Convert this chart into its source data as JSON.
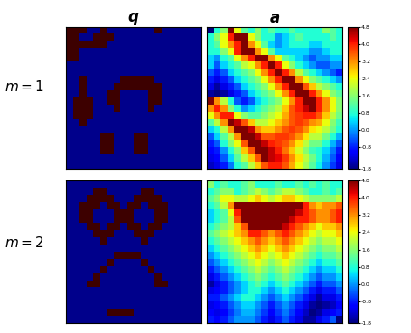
{
  "title_q": "$\\boldsymbol{q}$",
  "title_a": "$\\boldsymbol{a}$",
  "label_m1": "$m = 1$",
  "label_m2": "$m = 2$",
  "colorbar_ticks": [
    4.8,
    4.0,
    3.2,
    2.4,
    1.6,
    0.8,
    0.0,
    -0.8,
    -1.8
  ],
  "vmin": -1.8,
  "vmax": 4.8,
  "grid_size": 20,
  "q1_dark_color": "#3d0000",
  "q1_blue_color": "#00008B",
  "background": "#ffffff",
  "q1": [
    [
      1,
      1,
      1,
      0,
      0,
      1,
      0,
      0,
      0,
      0,
      0,
      0,
      0,
      1,
      0,
      0,
      0,
      0,
      0,
      0
    ],
    [
      1,
      1,
      0,
      0,
      1,
      1,
      1,
      0,
      0,
      0,
      0,
      0,
      0,
      0,
      0,
      0,
      0,
      0,
      0,
      0
    ],
    [
      1,
      1,
      1,
      1,
      1,
      1,
      0,
      0,
      0,
      0,
      0,
      0,
      0,
      0,
      0,
      0,
      0,
      0,
      0,
      0
    ],
    [
      1,
      1,
      0,
      0,
      0,
      0,
      0,
      0,
      0,
      0,
      0,
      0,
      0,
      0,
      0,
      0,
      0,
      0,
      0,
      0
    ],
    [
      1,
      1,
      0,
      0,
      0,
      0,
      0,
      0,
      0,
      0,
      0,
      0,
      0,
      0,
      0,
      0,
      0,
      0,
      0,
      0
    ],
    [
      0,
      0,
      0,
      0,
      0,
      0,
      0,
      0,
      0,
      0,
      0,
      0,
      0,
      0,
      0,
      0,
      0,
      0,
      0,
      0
    ],
    [
      0,
      0,
      0,
      0,
      0,
      0,
      0,
      0,
      0,
      0,
      0,
      0,
      0,
      0,
      0,
      0,
      0,
      0,
      0,
      0
    ],
    [
      0,
      0,
      1,
      0,
      0,
      0,
      0,
      0,
      1,
      1,
      1,
      1,
      1,
      0,
      0,
      0,
      0,
      0,
      0,
      0
    ],
    [
      0,
      0,
      1,
      0,
      0,
      0,
      0,
      1,
      1,
      1,
      1,
      1,
      1,
      1,
      0,
      0,
      0,
      0,
      0,
      0
    ],
    [
      0,
      0,
      1,
      0,
      0,
      0,
      1,
      1,
      0,
      0,
      0,
      0,
      1,
      1,
      0,
      0,
      0,
      0,
      0,
      0
    ],
    [
      0,
      1,
      1,
      1,
      0,
      0,
      1,
      1,
      0,
      0,
      0,
      0,
      1,
      1,
      0,
      0,
      0,
      0,
      0,
      0
    ],
    [
      0,
      1,
      1,
      1,
      0,
      0,
      0,
      1,
      0,
      0,
      0,
      0,
      1,
      0,
      0,
      0,
      0,
      0,
      0,
      0
    ],
    [
      0,
      1,
      1,
      1,
      0,
      0,
      0,
      0,
      0,
      0,
      0,
      0,
      0,
      0,
      0,
      0,
      0,
      0,
      0,
      0
    ],
    [
      0,
      0,
      1,
      0,
      0,
      0,
      0,
      0,
      0,
      0,
      0,
      0,
      0,
      0,
      0,
      0,
      0,
      0,
      0,
      0
    ],
    [
      0,
      0,
      0,
      0,
      0,
      0,
      0,
      0,
      0,
      0,
      0,
      0,
      0,
      0,
      0,
      0,
      0,
      0,
      0,
      0
    ],
    [
      0,
      0,
      0,
      0,
      0,
      1,
      1,
      0,
      0,
      0,
      1,
      1,
      0,
      0,
      0,
      0,
      0,
      0,
      0,
      0
    ],
    [
      0,
      0,
      0,
      0,
      0,
      1,
      1,
      0,
      0,
      0,
      1,
      1,
      0,
      0,
      0,
      0,
      0,
      0,
      0,
      0
    ],
    [
      0,
      0,
      0,
      0,
      0,
      1,
      1,
      0,
      0,
      0,
      1,
      1,
      0,
      0,
      0,
      0,
      0,
      0,
      0,
      0
    ],
    [
      0,
      0,
      0,
      0,
      0,
      0,
      0,
      0,
      0,
      0,
      0,
      0,
      0,
      0,
      0,
      0,
      0,
      0,
      0,
      0
    ],
    [
      0,
      0,
      0,
      0,
      0,
      0,
      0,
      0,
      0,
      0,
      0,
      0,
      0,
      0,
      0,
      0,
      0,
      0,
      0,
      0
    ]
  ],
  "q2": [
    [
      0,
      0,
      0,
      0,
      0,
      0,
      0,
      0,
      0,
      0,
      0,
      0,
      0,
      0,
      0,
      0,
      0,
      0,
      0,
      0
    ],
    [
      0,
      0,
      0,
      0,
      1,
      1,
      0,
      0,
      0,
      0,
      0,
      1,
      1,
      0,
      0,
      0,
      0,
      0,
      0,
      0
    ],
    [
      0,
      0,
      0,
      1,
      1,
      1,
      1,
      0,
      0,
      0,
      1,
      1,
      1,
      1,
      0,
      0,
      0,
      0,
      0,
      0
    ],
    [
      0,
      0,
      1,
      1,
      1,
      0,
      1,
      1,
      0,
      1,
      1,
      0,
      1,
      1,
      1,
      0,
      0,
      0,
      0,
      0
    ],
    [
      0,
      0,
      1,
      1,
      0,
      0,
      0,
      1,
      1,
      1,
      0,
      0,
      0,
      1,
      1,
      0,
      0,
      0,
      0,
      0
    ],
    [
      0,
      0,
      1,
      1,
      0,
      0,
      0,
      1,
      1,
      1,
      0,
      0,
      0,
      1,
      1,
      0,
      0,
      0,
      0,
      0
    ],
    [
      0,
      0,
      0,
      1,
      1,
      0,
      1,
      1,
      0,
      1,
      1,
      0,
      1,
      1,
      0,
      0,
      0,
      0,
      0,
      0
    ],
    [
      0,
      0,
      0,
      0,
      1,
      1,
      1,
      0,
      0,
      0,
      1,
      1,
      1,
      0,
      0,
      0,
      0,
      0,
      0,
      0
    ],
    [
      0,
      0,
      0,
      0,
      0,
      1,
      0,
      0,
      0,
      0,
      0,
      1,
      0,
      0,
      0,
      0,
      0,
      0,
      0,
      0
    ],
    [
      0,
      0,
      0,
      0,
      0,
      0,
      0,
      0,
      0,
      0,
      0,
      0,
      0,
      0,
      0,
      0,
      0,
      0,
      0,
      0
    ],
    [
      0,
      0,
      0,
      0,
      0,
      0,
      0,
      1,
      1,
      1,
      1,
      0,
      0,
      0,
      0,
      0,
      0,
      0,
      0,
      0
    ],
    [
      0,
      0,
      0,
      0,
      0,
      0,
      1,
      0,
      0,
      0,
      0,
      1,
      0,
      0,
      0,
      0,
      0,
      0,
      0,
      0
    ],
    [
      0,
      0,
      0,
      0,
      0,
      1,
      0,
      0,
      0,
      0,
      0,
      0,
      1,
      0,
      0,
      0,
      0,
      0,
      0,
      0
    ],
    [
      0,
      0,
      0,
      0,
      1,
      0,
      0,
      0,
      0,
      0,
      0,
      0,
      0,
      1,
      0,
      0,
      0,
      0,
      0,
      0
    ],
    [
      0,
      0,
      0,
      1,
      1,
      0,
      0,
      0,
      0,
      0,
      0,
      0,
      0,
      1,
      1,
      0,
      0,
      0,
      0,
      0
    ],
    [
      0,
      0,
      0,
      0,
      0,
      0,
      0,
      0,
      0,
      0,
      0,
      0,
      0,
      0,
      0,
      0,
      0,
      0,
      0,
      0
    ],
    [
      0,
      0,
      0,
      0,
      0,
      0,
      0,
      0,
      0,
      0,
      0,
      0,
      0,
      0,
      0,
      0,
      0,
      0,
      0,
      0
    ],
    [
      0,
      0,
      0,
      0,
      0,
      0,
      0,
      0,
      0,
      0,
      0,
      0,
      0,
      0,
      0,
      0,
      0,
      0,
      0,
      0
    ],
    [
      0,
      0,
      0,
      0,
      0,
      0,
      1,
      1,
      1,
      1,
      0,
      0,
      0,
      0,
      0,
      0,
      0,
      0,
      0,
      0
    ],
    [
      0,
      0,
      0,
      0,
      0,
      0,
      0,
      0,
      0,
      0,
      0,
      0,
      0,
      0,
      0,
      0,
      0,
      0,
      0,
      0
    ]
  ],
  "a1": [
    [
      -1.8,
      0.8,
      1.6,
      4.8,
      2.4,
      1.2,
      0.8,
      1.6,
      0.8,
      1.2,
      0.8,
      0.8,
      1.2,
      0.8,
      0.8,
      0.8,
      0.8,
      1.6,
      1.2,
      0.8
    ],
    [
      0.8,
      1.6,
      2.4,
      4.0,
      4.8,
      4.8,
      2.4,
      1.6,
      0.8,
      0.8,
      0.0,
      0.4,
      0.8,
      1.2,
      0.8,
      0.8,
      0.8,
      0.8,
      1.2,
      0.8
    ],
    [
      0.8,
      1.2,
      2.4,
      3.2,
      4.0,
      4.8,
      3.2,
      2.4,
      1.2,
      0.4,
      0.0,
      0.4,
      0.8,
      0.8,
      0.8,
      0.4,
      0.4,
      0.8,
      0.8,
      0.8
    ],
    [
      0.8,
      0.8,
      1.6,
      2.4,
      4.0,
      4.8,
      4.8,
      3.2,
      2.4,
      1.2,
      0.4,
      0.4,
      0.4,
      0.4,
      0.4,
      0.0,
      0.0,
      0.4,
      0.8,
      0.8
    ],
    [
      0.4,
      0.0,
      0.8,
      1.2,
      2.4,
      3.2,
      4.0,
      4.8,
      4.8,
      3.2,
      2.4,
      1.2,
      0.8,
      0.4,
      0.0,
      -0.4,
      0.0,
      0.0,
      0.4,
      0.4
    ],
    [
      0.4,
      -0.4,
      0.4,
      0.8,
      1.2,
      2.0,
      2.4,
      3.2,
      4.0,
      4.8,
      4.0,
      2.4,
      1.6,
      0.8,
      0.4,
      0.0,
      -0.4,
      -0.4,
      0.0,
      0.0
    ],
    [
      -0.4,
      -0.8,
      -0.4,
      0.4,
      0.8,
      1.2,
      1.6,
      2.4,
      3.2,
      4.0,
      4.8,
      4.0,
      3.2,
      2.0,
      1.2,
      0.8,
      0.4,
      0.0,
      -0.4,
      -0.8
    ],
    [
      -0.8,
      -1.2,
      -0.8,
      -0.4,
      0.4,
      0.8,
      1.2,
      1.6,
      2.4,
      3.2,
      4.0,
      4.8,
      4.8,
      3.2,
      2.4,
      1.6,
      1.2,
      0.8,
      0.4,
      0.0
    ],
    [
      -1.2,
      -1.6,
      -1.2,
      -0.8,
      -0.4,
      0.4,
      0.8,
      1.2,
      1.6,
      2.4,
      3.2,
      4.0,
      4.8,
      4.8,
      3.6,
      2.8,
      2.0,
      1.6,
      1.2,
      0.8
    ],
    [
      -1.6,
      -1.8,
      -1.6,
      -1.2,
      -0.8,
      -0.4,
      0.4,
      0.8,
      1.2,
      1.6,
      2.4,
      3.2,
      4.0,
      4.8,
      4.8,
      4.0,
      3.2,
      2.4,
      1.6,
      1.2
    ],
    [
      4.8,
      3.2,
      2.0,
      0.8,
      -0.4,
      -0.8,
      -0.4,
      0.4,
      0.8,
      1.2,
      1.6,
      2.4,
      3.2,
      4.0,
      4.8,
      4.8,
      4.0,
      3.2,
      2.4,
      1.6
    ],
    [
      3.2,
      4.0,
      3.2,
      1.6,
      0.8,
      0.0,
      0.4,
      0.8,
      1.2,
      1.6,
      2.0,
      2.8,
      3.6,
      4.0,
      4.4,
      4.8,
      4.0,
      3.2,
      2.4,
      1.6
    ],
    [
      2.4,
      3.2,
      4.0,
      4.0,
      2.4,
      1.6,
      1.2,
      1.2,
      1.6,
      2.0,
      2.4,
      3.0,
      3.6,
      3.8,
      4.0,
      4.0,
      3.6,
      2.8,
      2.0,
      1.4
    ],
    [
      1.2,
      2.0,
      3.2,
      4.8,
      4.4,
      3.6,
      2.8,
      2.0,
      2.0,
      2.4,
      2.8,
      3.2,
      3.6,
      3.8,
      3.6,
      3.2,
      3.0,
      2.4,
      1.6,
      1.0
    ],
    [
      0.4,
      0.8,
      2.0,
      3.2,
      4.8,
      4.8,
      4.4,
      3.2,
      2.8,
      2.8,
      3.2,
      3.6,
      3.8,
      3.6,
      3.2,
      2.6,
      2.4,
      2.0,
      1.4,
      0.8
    ],
    [
      -0.4,
      0.4,
      1.2,
      2.0,
      3.2,
      4.8,
      4.8,
      4.4,
      3.6,
      3.6,
      3.8,
      3.8,
      3.6,
      3.2,
      2.6,
      2.0,
      2.0,
      1.4,
      0.8,
      0.2
    ],
    [
      -0.8,
      -0.4,
      0.8,
      1.6,
      2.4,
      3.6,
      4.8,
      4.8,
      4.4,
      4.0,
      3.8,
      3.6,
      3.2,
      2.6,
      2.0,
      1.4,
      1.4,
      0.8,
      0.2,
      -0.4
    ],
    [
      -1.0,
      -0.8,
      0.0,
      0.8,
      1.6,
      2.8,
      3.6,
      4.8,
      4.8,
      4.4,
      4.0,
      3.4,
      2.8,
      2.2,
      1.6,
      1.0,
      0.8,
      0.4,
      -0.2,
      -0.8
    ],
    [
      -1.2,
      -1.0,
      -0.4,
      0.4,
      1.2,
      2.0,
      2.8,
      3.6,
      4.8,
      4.4,
      4.2,
      3.8,
      3.2,
      2.6,
      2.0,
      1.4,
      0.8,
      0.2,
      -0.4,
      -1.0
    ],
    [
      -1.4,
      -1.2,
      -0.8,
      -0.2,
      0.8,
      1.2,
      2.0,
      2.8,
      3.6,
      4.0,
      4.0,
      3.6,
      3.0,
      2.4,
      1.8,
      1.2,
      0.6,
      0.0,
      -0.6,
      -1.2
    ]
  ],
  "a2": [
    [
      1.6,
      0.8,
      1.2,
      0.8,
      0.8,
      1.2,
      1.6,
      0.8,
      0.8,
      0.8,
      1.2,
      0.8,
      0.8,
      1.2,
      0.8,
      1.2,
      0.8,
      1.2,
      0.8,
      0.8
    ],
    [
      0.8,
      1.2,
      1.6,
      1.6,
      0.8,
      1.2,
      1.6,
      2.0,
      1.6,
      1.2,
      1.6,
      2.0,
      2.0,
      1.6,
      1.2,
      0.8,
      0.8,
      1.2,
      0.8,
      1.2
    ],
    [
      1.2,
      1.6,
      2.4,
      2.4,
      2.0,
      2.0,
      2.4,
      2.8,
      2.4,
      2.0,
      2.4,
      2.8,
      2.8,
      2.4,
      2.0,
      1.6,
      1.6,
      1.6,
      1.6,
      2.0
    ],
    [
      0.8,
      1.2,
      2.0,
      3.2,
      4.8,
      4.8,
      4.8,
      4.8,
      4.8,
      4.8,
      4.8,
      4.8,
      4.8,
      4.8,
      4.0,
      3.2,
      2.8,
      3.2,
      3.2,
      3.6
    ],
    [
      0.4,
      0.8,
      1.2,
      2.4,
      4.0,
      4.8,
      4.8,
      4.8,
      4.8,
      4.8,
      4.8,
      4.8,
      4.8,
      4.4,
      4.0,
      3.6,
      3.2,
      3.2,
      3.6,
      4.0
    ],
    [
      0.4,
      0.8,
      1.2,
      2.0,
      3.6,
      4.8,
      4.8,
      4.8,
      4.8,
      4.8,
      4.8,
      4.8,
      4.4,
      4.0,
      4.0,
      3.6,
      3.2,
      3.2,
      3.6,
      4.0
    ],
    [
      0.8,
      1.2,
      1.6,
      2.0,
      2.8,
      3.6,
      4.8,
      4.8,
      4.8,
      4.8,
      4.8,
      4.4,
      4.0,
      3.6,
      3.2,
      2.8,
      2.4,
      2.8,
      2.8,
      3.2
    ],
    [
      1.2,
      1.6,
      2.0,
      2.4,
      2.8,
      3.2,
      4.0,
      4.0,
      3.6,
      3.2,
      3.6,
      4.0,
      3.6,
      3.2,
      2.8,
      2.4,
      2.0,
      2.4,
      2.4,
      2.8
    ],
    [
      0.8,
      1.2,
      1.6,
      2.0,
      2.4,
      2.8,
      3.2,
      3.6,
      3.2,
      2.8,
      3.2,
      3.6,
      3.2,
      2.8,
      2.4,
      2.0,
      1.6,
      2.0,
      2.0,
      2.4
    ],
    [
      0.4,
      0.8,
      1.2,
      1.6,
      2.0,
      2.4,
      2.8,
      3.2,
      2.8,
      2.4,
      2.8,
      3.2,
      2.8,
      2.4,
      2.0,
      1.6,
      1.2,
      1.6,
      1.6,
      2.0
    ],
    [
      0.0,
      0.4,
      0.8,
      1.2,
      1.6,
      2.0,
      2.4,
      2.8,
      2.4,
      2.0,
      2.4,
      2.8,
      2.4,
      2.0,
      1.6,
      1.2,
      0.8,
      1.2,
      1.2,
      1.6
    ],
    [
      -0.4,
      0.0,
      0.4,
      0.8,
      1.2,
      1.6,
      2.0,
      2.4,
      2.0,
      1.6,
      2.0,
      2.4,
      2.0,
      1.6,
      1.2,
      0.8,
      0.4,
      0.8,
      0.8,
      1.2
    ],
    [
      -0.8,
      -0.4,
      0.0,
      0.4,
      0.8,
      1.2,
      1.6,
      2.0,
      1.6,
      1.2,
      1.6,
      2.0,
      1.6,
      1.2,
      0.8,
      0.4,
      0.0,
      0.4,
      0.4,
      0.8
    ],
    [
      -1.2,
      -0.8,
      -0.4,
      0.0,
      0.4,
      0.8,
      1.2,
      1.6,
      1.2,
      0.8,
      1.2,
      1.6,
      1.2,
      0.8,
      0.4,
      0.0,
      -0.4,
      0.0,
      0.0,
      0.4
    ],
    [
      -1.6,
      -1.2,
      -0.8,
      -0.4,
      0.0,
      0.4,
      0.8,
      1.2,
      0.8,
      0.4,
      0.8,
      1.2,
      0.8,
      0.4,
      0.0,
      -0.4,
      -0.8,
      -0.4,
      -0.4,
      0.0
    ],
    [
      -1.2,
      -1.0,
      -0.8,
      -0.4,
      0.0,
      0.4,
      0.8,
      0.8,
      0.4,
      0.0,
      0.4,
      0.8,
      0.4,
      0.0,
      -0.4,
      -0.8,
      -1.2,
      -0.8,
      -0.8,
      -0.4
    ],
    [
      -0.8,
      -0.8,
      -0.4,
      0.0,
      0.4,
      0.8,
      0.8,
      0.4,
      0.0,
      -0.4,
      0.0,
      0.4,
      0.0,
      -0.4,
      -0.8,
      -1.2,
      -1.6,
      -1.2,
      -1.2,
      -0.8
    ],
    [
      -1.2,
      -1.0,
      -0.8,
      -0.4,
      0.0,
      0.4,
      0.4,
      0.0,
      -0.4,
      -0.8,
      -0.4,
      0.0,
      -0.4,
      -0.8,
      -1.2,
      -1.6,
      -1.8,
      -1.6,
      -1.4,
      -1.0
    ],
    [
      -1.0,
      -1.2,
      -1.0,
      -0.6,
      -0.2,
      0.2,
      0.2,
      -0.2,
      -0.6,
      -1.0,
      -0.6,
      -0.2,
      -0.6,
      -1.0,
      -1.4,
      -1.8,
      -1.6,
      -1.2,
      -1.0,
      -0.8
    ],
    [
      -0.8,
      -1.0,
      -0.8,
      -0.4,
      0.0,
      0.0,
      0.0,
      -0.4,
      -0.8,
      -1.2,
      -0.8,
      -0.4,
      -0.8,
      -1.2,
      -1.6,
      -1.6,
      -1.2,
      -0.8,
      -0.4,
      -1.8
    ]
  ]
}
